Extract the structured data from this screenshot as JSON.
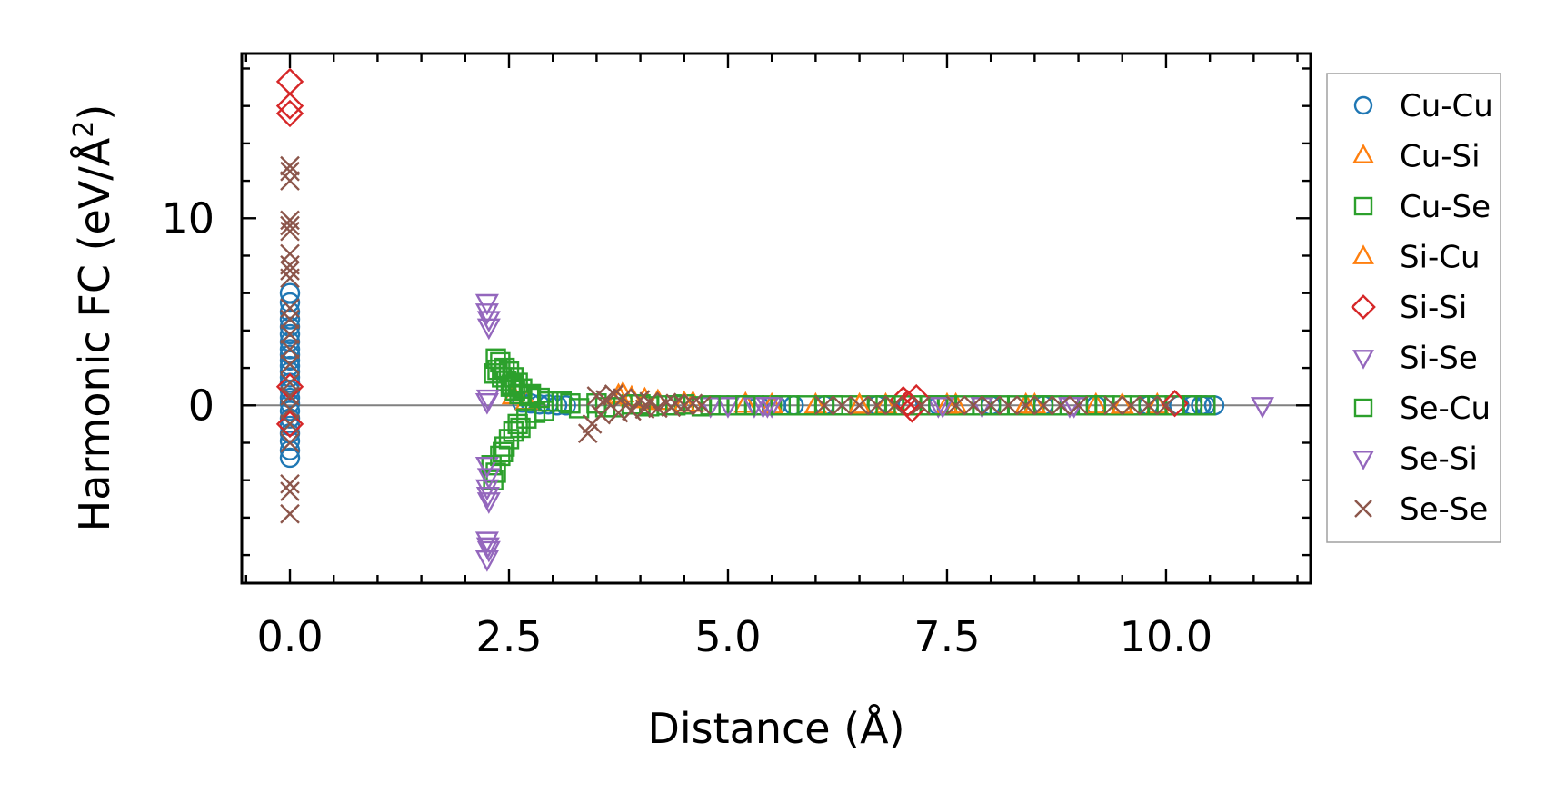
{
  "chart_data": {
    "type": "scatter",
    "title": "",
    "xlabel": "Distance (Å)",
    "ylabel_main": "Harmonic FC (eV/Å",
    "ylabel_sup": "2",
    "ylabel_close": ")",
    "xlim": [
      -0.55,
      11.65
    ],
    "ylim": [
      -9.5,
      18.8
    ],
    "xticks": [
      {
        "value": 0.0,
        "label": "0.0"
      },
      {
        "value": 2.5,
        "label": "2.5"
      },
      {
        "value": 5.0,
        "label": "5.0"
      },
      {
        "value": 7.5,
        "label": "7.5"
      },
      {
        "value": 10.0,
        "label": "10.0"
      }
    ],
    "yticks": [
      {
        "value": 0,
        "label": "0"
      },
      {
        "value": 10,
        "label": "10"
      }
    ],
    "x_minor_step": 0.5,
    "y_minor_step": 2,
    "grid": false,
    "reference_line": {
      "y": 0,
      "color": "#808080"
    },
    "legend_position": "outside-right",
    "series": [
      {
        "name": "Cu-Cu",
        "marker": "circle",
        "color": "#1f77b4",
        "x": [
          0,
          0,
          0,
          0,
          0,
          0,
          0,
          0,
          0,
          0,
          0,
          0,
          0,
          0,
          0,
          0,
          0,
          0,
          0,
          0,
          0,
          0,
          0,
          0,
          2.65,
          2.75,
          2.85,
          2.95,
          3.05,
          3.15,
          5.35,
          5.55,
          5.75,
          6.1,
          6.7,
          7.05,
          7.4,
          8.0,
          8.6,
          9.2,
          9.8,
          10.15,
          10.3,
          10.4,
          10.45,
          10.55
        ],
        "y": [
          6.0,
          5.5,
          5.0,
          4.6,
          4.2,
          3.8,
          3.4,
          3.0,
          2.7,
          2.4,
          2.1,
          1.8,
          1.5,
          1.2,
          0.8,
          0.4,
          0.1,
          -0.3,
          -0.7,
          -1.1,
          -1.5,
          -1.9,
          -2.4,
          -2.8,
          0.15,
          0.1,
          0.05,
          0.05,
          0,
          0,
          0,
          0,
          0,
          0,
          0,
          0,
          0,
          0,
          0,
          0,
          0,
          0,
          0,
          0,
          0,
          0
        ]
      },
      {
        "name": "Cu-Si",
        "marker": "triangle-up",
        "color": "#ff7f0e",
        "x": [
          2.55,
          2.7,
          3.8,
          3.9,
          4.2,
          4.6,
          5.2,
          6.0,
          6.8,
          7.6,
          8.4,
          9.2,
          9.9
        ],
        "y": [
          0.5,
          0.2,
          0.6,
          0.4,
          0.2,
          0.1,
          0.05,
          0,
          0,
          0,
          0,
          0,
          0
        ]
      },
      {
        "name": "Cu-Se",
        "marker": "square",
        "color": "#2ca02c",
        "x": [
          2.3,
          2.32,
          2.35,
          2.35,
          2.37,
          2.4,
          2.4,
          2.42,
          2.45,
          2.45,
          2.47,
          2.5,
          2.5,
          2.52,
          2.55,
          2.55,
          2.57,
          2.6,
          2.6,
          2.62,
          2.65,
          2.7,
          2.75,
          2.8,
          2.85,
          2.9,
          2.95,
          3.1,
          3.3,
          3.5,
          3.7,
          3.9,
          4.1,
          4.3,
          4.5,
          4.7,
          4.9,
          5.1,
          5.3,
          5.5,
          5.7,
          5.9,
          6.1,
          6.3,
          6.5,
          6.7,
          6.9,
          7.1,
          7.3,
          7.5,
          7.7,
          7.9,
          8.1,
          8.3,
          8.5,
          8.7,
          8.9,
          9.1,
          9.3,
          9.5,
          9.7,
          9.9,
          10.1,
          10.3,
          10.45
        ],
        "y": [
          -3.2,
          -4.0,
          2.5,
          -3.6,
          1.9,
          2.3,
          -2.7,
          1.5,
          2.0,
          -2.2,
          1.3,
          1.8,
          -1.8,
          1.0,
          1.5,
          -1.4,
          0.8,
          1.2,
          -1.0,
          0.6,
          0.9,
          -0.7,
          0.6,
          -0.4,
          0.4,
          -0.3,
          0.2,
          0.2,
          -0.15,
          0.1,
          -0.1,
          0.05,
          -0.05,
          0,
          0.05,
          -0.05,
          0,
          0,
          0,
          0,
          0,
          0,
          0,
          0,
          0,
          0,
          0,
          0,
          0,
          0,
          0,
          0,
          0,
          0,
          0,
          0,
          0,
          0,
          0,
          0,
          0,
          0,
          0,
          0,
          0
        ]
      },
      {
        "name": "Si-Cu",
        "marker": "triangle-up",
        "color": "#ff7f0e",
        "x": [
          3.75,
          4.05,
          4.5,
          5.5,
          6.5,
          7.5,
          8.5,
          9.5
        ],
        "y": [
          0.5,
          0.3,
          0.1,
          0,
          0,
          0,
          0,
          0
        ]
      },
      {
        "name": "Si-Si",
        "marker": "diamond",
        "color": "#d62728",
        "x": [
          0,
          0,
          0,
          0,
          0,
          7.0,
          7.05,
          7.1,
          7.15,
          10.1
        ],
        "y": [
          17.3,
          16.0,
          15.6,
          1.0,
          -1.0,
          0.3,
          0.1,
          -0.2,
          0.4,
          0.1
        ]
      },
      {
        "name": "Si-Se",
        "marker": "triangle-down",
        "color": "#9467bd",
        "x": [
          2.25,
          2.25,
          2.27,
          2.27,
          2.25,
          2.25,
          2.27,
          2.25,
          2.27,
          2.25,
          2.27,
          2.25,
          4.8,
          5.0,
          5.3,
          5.4,
          5.5,
          7.4,
          7.9,
          8.9,
          11.1
        ],
        "y": [
          5.5,
          5.0,
          4.6,
          4.2,
          0.2,
          -3.2,
          -3.8,
          -4.4,
          -5.1,
          -7.2,
          -7.7,
          -8.2,
          0,
          0,
          0,
          0,
          0,
          0,
          0,
          0,
          0
        ]
      },
      {
        "name": "Se-Cu",
        "marker": "square",
        "color": "#2ca02c",
        "x": [
          2.33,
          2.43,
          2.53,
          2.63,
          2.73,
          3.2,
          3.6,
          4.0,
          4.4,
          4.8,
          5.2,
          5.6,
          6.2,
          6.8,
          7.4,
          8.0,
          8.6,
          9.2,
          9.8,
          10.3
        ],
        "y": [
          1.7,
          -2.5,
          1.1,
          -1.2,
          0.5,
          0.1,
          -0.1,
          0.05,
          0,
          0,
          0,
          0,
          0,
          0,
          0,
          0,
          0,
          0,
          0,
          0
        ]
      },
      {
        "name": "Se-Si",
        "marker": "triangle-down",
        "color": "#9467bd",
        "x": [
          2.26,
          2.26,
          2.26,
          5.45,
          7.45,
          8.95
        ],
        "y": [
          0.4,
          -4.8,
          -7.5,
          0,
          0,
          0
        ]
      },
      {
        "name": "Se-Se",
        "marker": "x",
        "color": "#8c564b",
        "x": [
          0,
          0,
          0,
          0,
          0,
          0,
          0,
          0,
          0,
          0,
          0,
          0,
          0,
          0,
          0,
          0,
          0,
          0,
          0,
          0,
          0,
          0,
          0,
          3.4,
          3.45,
          3.5,
          3.55,
          3.6,
          3.7,
          3.75,
          3.8,
          3.9,
          4.0,
          4.05,
          4.1,
          4.2,
          4.3,
          4.35,
          4.4,
          4.5,
          4.6,
          4.7,
          6.1,
          6.3,
          6.5,
          6.7,
          6.9,
          7.2,
          7.6,
          7.8,
          8.0,
          8.2,
          8.4,
          8.6,
          8.8,
          9.0,
          9.4,
          9.6,
          9.8,
          10.0
        ],
        "y": [
          12.8,
          12.5,
          12.0,
          9.9,
          9.6,
          9.3,
          8.1,
          7.5,
          7.2,
          6.8,
          5.2,
          4.6,
          3.8,
          3.0,
          2.2,
          1.2,
          0.5,
          -0.2,
          -1.0,
          -2.0,
          -4.2,
          -4.6,
          -5.8,
          -1.5,
          -1.0,
          0.5,
          -0.5,
          0.3,
          0.6,
          -0.4,
          0.4,
          -0.3,
          0.3,
          -0.2,
          0.2,
          -0.15,
          0.15,
          -0.1,
          0.1,
          0,
          0.1,
          0,
          0,
          0,
          0,
          0,
          0,
          0,
          0,
          0,
          0,
          0,
          0,
          0,
          0,
          0,
          0,
          0,
          0,
          0
        ]
      }
    ]
  }
}
